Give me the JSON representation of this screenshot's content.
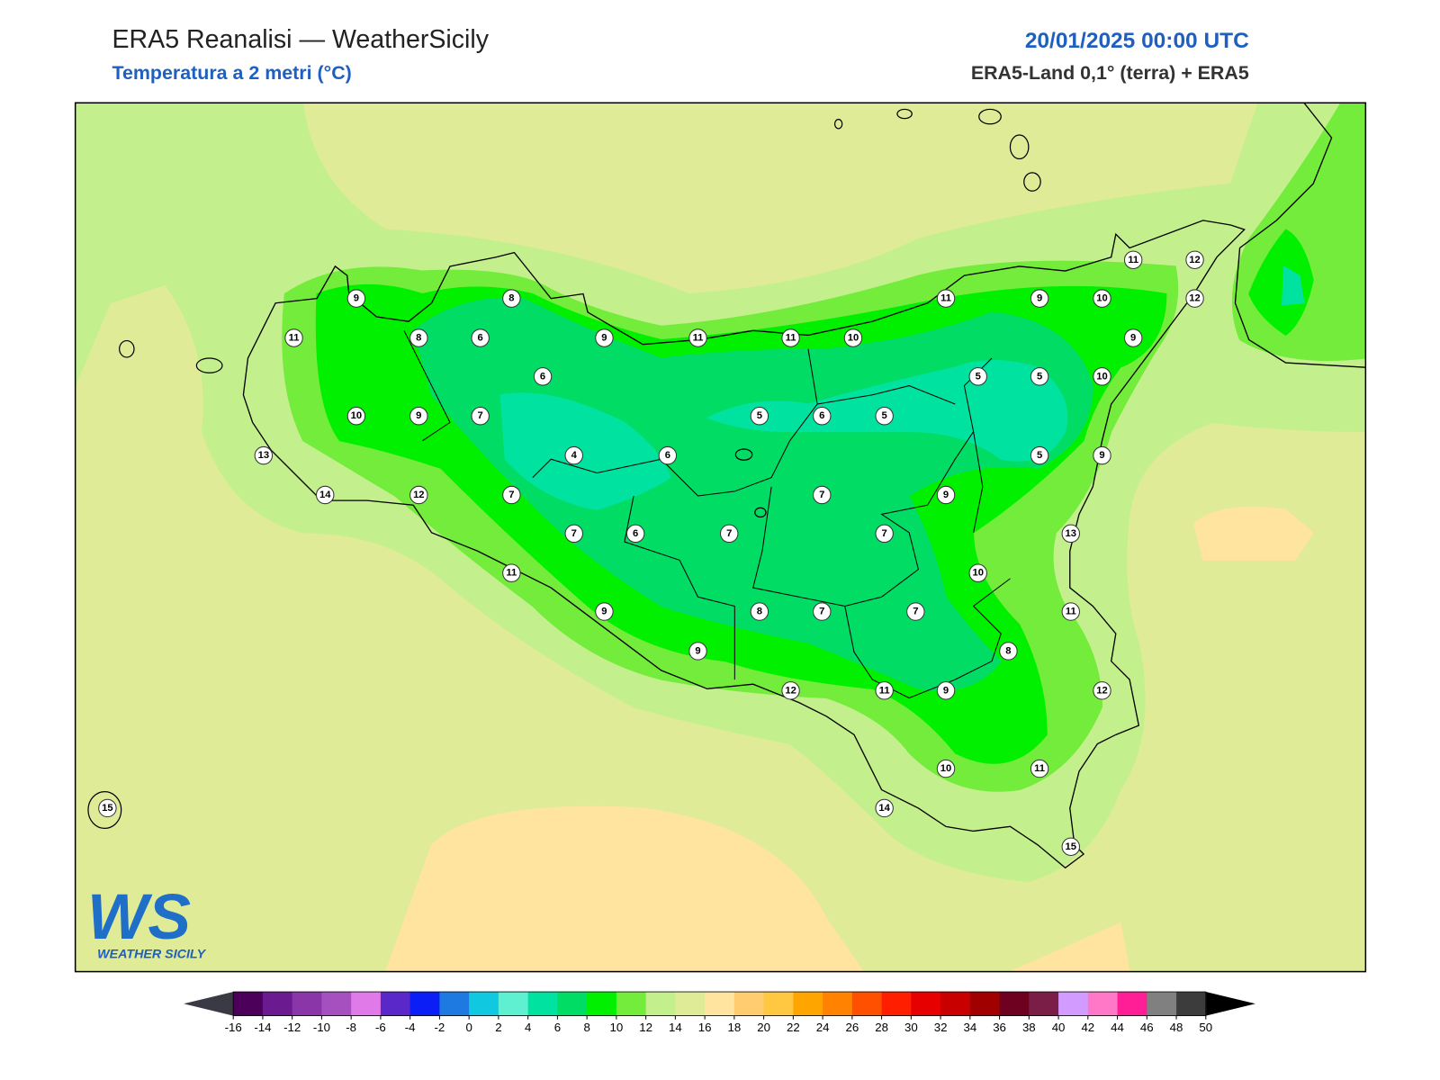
{
  "header": {
    "title": "ERA5 Reanalisi — WeatherSicily",
    "subtitle": "Temperatura a 2 metri (°C)",
    "datetime": "20/01/2025 00:00 UTC",
    "source": "ERA5-Land 0,1° (terra) + ERA5"
  },
  "stations": [
    11,
    12,
    9,
    8,
    11,
    9,
    10,
    12,
    11,
    8,
    6,
    9,
    11,
    11,
    10,
    9,
    6,
    5,
    5,
    10,
    10,
    9,
    7,
    5,
    6,
    5,
    13,
    4,
    6,
    5,
    9,
    14,
    12,
    7,
    7,
    9,
    7,
    6,
    7,
    7,
    13,
    11,
    10,
    9,
    8,
    7,
    7,
    11,
    9,
    8,
    12,
    11,
    9,
    12,
    10,
    11,
    15,
    14,
    15
  ],
  "colorbar": {
    "ticks": [
      -16,
      -14,
      -12,
      -10,
      -8,
      -6,
      -4,
      -2,
      0,
      2,
      4,
      6,
      8,
      10,
      12,
      14,
      16,
      18,
      20,
      22,
      24,
      26,
      28,
      30,
      32,
      34,
      36,
      38,
      40,
      42,
      44,
      46,
      48,
      50
    ],
    "colors": [
      "#4d005a",
      "#6b1a8f",
      "#8a36a8",
      "#a64fbf",
      "#e07ae8",
      "#5a28c8",
      "#0a1ef5",
      "#1e7ae0",
      "#10c8e0",
      "#5ef0d0",
      "#00e3a0",
      "#00dc64",
      "#00f000",
      "#73ec3c",
      "#c3f08c",
      "#e0eb98",
      "#ffe4a0",
      "#ffcc70",
      "#ffc840",
      "#ffa500",
      "#ff8200",
      "#ff5000",
      "#ff1e00",
      "#e60000",
      "#c80000",
      "#a00000",
      "#6e0020",
      "#7a1e48",
      "#d29bff",
      "#ff78c8",
      "#ff1e96",
      "#808080",
      "#3c3c3c"
    ],
    "under": "#3a3a44",
    "over": "#000000"
  },
  "logo": {
    "mark": "WS",
    "name": "WEATHER SICILY"
  }
}
